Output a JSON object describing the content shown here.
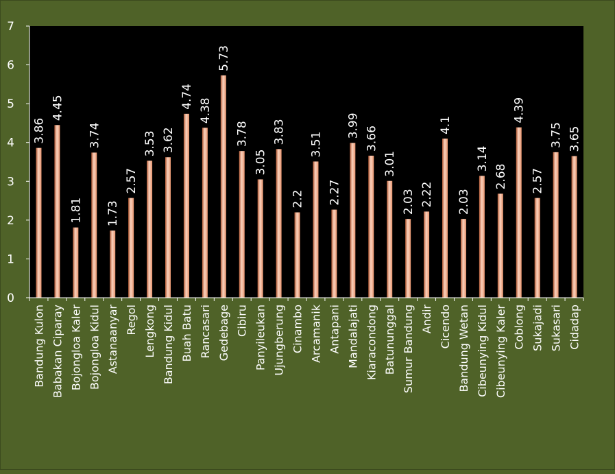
{
  "chart_data": {
    "type": "bar",
    "title": "",
    "xlabel": "",
    "ylabel": "",
    "ylim": [
      0,
      7
    ],
    "yticks": [
      "0",
      "1",
      "2",
      "3",
      "4",
      "5",
      "6",
      "7"
    ],
    "grid": false,
    "legend": "none",
    "categories": [
      "Bandung Kulon",
      "Babakan Ciparay",
      "Bojongloa Kaler",
      "Bojongloa Kidul",
      "Astanaanyar",
      "Regol",
      "Lengkong",
      "Bandung Kidul",
      "Buah Batu",
      "Rancasari",
      "Gedebage",
      "Cibiru",
      "Panyileukan",
      "Ujungberung",
      "Cinambo",
      "Arcamanik",
      "Antapani",
      "Mandalajati",
      "Kiaracondong",
      "Batununggal",
      "Sumur Bandung",
      "Andir",
      "Cicendo",
      "Bandung Wetan",
      "Cibeunying Kidul",
      "Cibeunying Kaler",
      "Coblong",
      "Sukajadi",
      "Sukasari",
      "Cidadap"
    ],
    "values": [
      3.86,
      4.45,
      1.81,
      3.74,
      1.73,
      2.57,
      3.53,
      3.62,
      4.74,
      4.38,
      5.73,
      3.78,
      3.05,
      3.83,
      2.2,
      3.51,
      2.27,
      3.99,
      3.66,
      3.01,
      2.03,
      2.22,
      4.1,
      2.03,
      3.14,
      2.68,
      4.39,
      2.57,
      3.75,
      3.65
    ],
    "data_labels": [
      "3.86",
      "4.45",
      "1.81",
      "3.74",
      "1.73",
      "2.57",
      "3.53",
      "3.62",
      "4.74",
      "4.38",
      "5.73",
      "3.78",
      "3.05",
      "3.83",
      "2.2",
      "3.51",
      "2.27",
      "3.99",
      "3.66",
      "3.01",
      "2.03",
      "2.22",
      "4.1",
      "2.03",
      "3.14",
      "2.68",
      "4.39",
      "2.57",
      "3.75",
      "3.65"
    ],
    "colors": {
      "background": "#4f6228",
      "plot_area": "#000000",
      "bar": "#e8956f",
      "bar_highlight": "#fbd2bd",
      "bar_shadow": "#b35a35",
      "text": "#ffffff",
      "axis": "#ffffff"
    }
  }
}
